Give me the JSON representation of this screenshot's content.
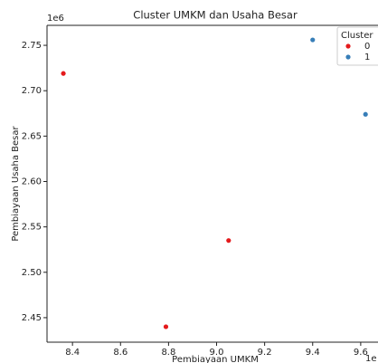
{
  "chart_data": {
    "type": "scatter",
    "title": "Cluster UMKM dan Usaha Besar",
    "x_label": "Pembiayaan UMKM",
    "y_label": "Pembiayaan Usaha Besar",
    "x_offset_label": "1e",
    "y_offset_label": "1e6",
    "legend_title": "Cluster",
    "legend_position": "upper right",
    "xlim": [
      8.294,
      9.672
    ],
    "ylim": [
      2.423,
      2.772
    ],
    "xticks": [
      8.4,
      8.6,
      8.8,
      {
        "value": 9.0,
        "label": "9.0"
      },
      9.2,
      9.4,
      9.6
    ],
    "yticks": [
      2.45,
      {
        "value": 2.5,
        "label": "2.50"
      },
      2.55,
      {
        "value": 2.6,
        "label": "2.60"
      },
      2.65,
      {
        "value": 2.7,
        "label": "2.70"
      },
      2.75
    ],
    "series": [
      {
        "name": "0",
        "color": "#e41a1c",
        "x": [
          8.362,
          8.789,
          9.05
        ],
        "values": [
          2.719,
          2.44,
          2.535
        ]
      },
      {
        "name": "1",
        "color": "#377eb8",
        "x": [
          9.4,
          9.62
        ],
        "values": [
          2.756,
          2.674
        ]
      }
    ]
  }
}
